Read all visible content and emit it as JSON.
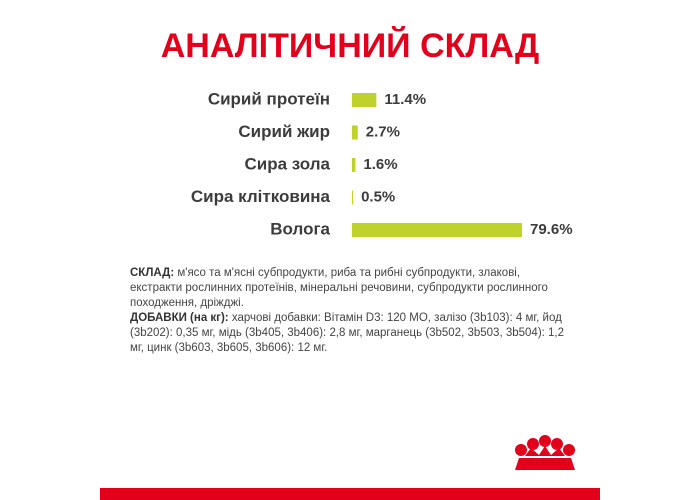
{
  "chart_data": {
    "type": "hbar",
    "title": "АНАЛІТИЧНИЙ СКЛАД",
    "categories": [
      "Сирий протеїн",
      "Сирий жир",
      "Сира зола",
      "Сира клітковина",
      "Волога"
    ],
    "values": [
      11.4,
      2.7,
      1.6,
      0.5,
      79.6
    ],
    "value_labels": [
      "11.4%",
      "2.7%",
      "1.6%",
      "0.5%",
      "79.6%"
    ],
    "color": "#bfd22b"
  },
  "composition": {
    "label": "СКЛАД:",
    "text": " м'ясо та м'ясні субпродукти, риба та рибні субпродукти, злакові, екстракти рослинних протеїнів, мінеральні речовини, субпродукти рослинного походження, дріжджі."
  },
  "additives": {
    "label": "ДОБАВКИ (на кг):",
    "text": " харчові добавки: Вітамін D3: 120 МО, залізо (3b103): 4 мг, йод (3b202): 0,35 мг, мідь (3b405, 3b406): 2,8 мг, марганець (3b502, 3b503, 3b504): 1,2 мг, цинк (3b603, 3b605, 3b606): 12 мг."
  }
}
